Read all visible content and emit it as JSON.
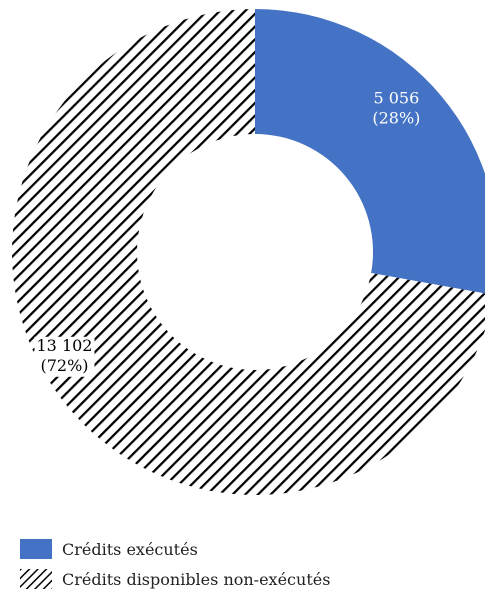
{
  "chart_data": {
    "type": "pie",
    "title": "",
    "categories": [
      "Crédits exécutés",
      "Crédits disponibles non-exécutés"
    ],
    "values": [
      5056,
      13102
    ],
    "percentages": [
      28,
      72
    ],
    "data_labels": [
      {
        "value": "5 056",
        "percent": "(28%)"
      },
      {
        "value": "13 102",
        "percent": "(72%)"
      }
    ],
    "fills": [
      "#4472c4",
      "hatched black diagonal stripes"
    ],
    "colors": {
      "executed": "#4472c4",
      "hatch_stroke": "#000000",
      "executed_label_text": "#ffffff",
      "remaining_label_text": "#000000"
    },
    "donut": true,
    "legend_position": "bottom-left"
  },
  "legend": {
    "items": [
      {
        "label": "Crédits exécutés"
      },
      {
        "label": "Crédits disponibles non-exécutés"
      }
    ]
  }
}
